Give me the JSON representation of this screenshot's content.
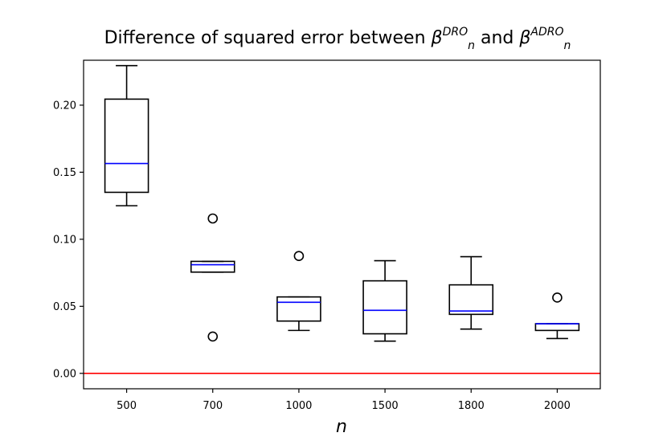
{
  "chart_data": {
    "type": "box",
    "title": "Difference of squared error between β",
    "title_parts": {
      "prefix": "Difference of squared error between ",
      "sym1": "β",
      "sub1": "n",
      "sup1": "DRO",
      "mid": " and ",
      "sym2": "β",
      "sub2": "n",
      "sup2": "ADRO"
    },
    "xlabel": "n",
    "ylabel": "",
    "ylim": [
      -0.0115,
      0.2335
    ],
    "yticks": [
      "0.00",
      "0.05",
      "0.10",
      "0.15",
      "0.20"
    ],
    "categories": [
      "500",
      "700",
      "1000",
      "1500",
      "1800",
      "2000"
    ],
    "boxes": [
      {
        "whisker_low": 0.125,
        "q1": 0.135,
        "median": 0.1565,
        "q3": 0.2045,
        "whisker_high": 0.2295,
        "outliers": []
      },
      {
        "whisker_low": 0.0755,
        "q1": 0.0755,
        "median": 0.081,
        "q3": 0.0835,
        "whisker_high": 0.0835,
        "outliers": [
          0.1155,
          0.0275
        ]
      },
      {
        "whisker_low": 0.032,
        "q1": 0.039,
        "median": 0.053,
        "q3": 0.057,
        "whisker_high": 0.057,
        "outliers": [
          0.0875
        ]
      },
      {
        "whisker_low": 0.024,
        "q1": 0.0295,
        "median": 0.047,
        "q3": 0.069,
        "whisker_high": 0.084,
        "outliers": []
      },
      {
        "whisker_low": 0.033,
        "q1": 0.044,
        "median": 0.0465,
        "q3": 0.066,
        "whisker_high": 0.087,
        "outliers": []
      },
      {
        "whisker_low": 0.026,
        "q1": 0.032,
        "median": 0.037,
        "q3": 0.037,
        "whisker_high": 0.037,
        "outliers": [
          0.0565
        ]
      }
    ],
    "reference_line": {
      "y": 0.0
    },
    "colors": {
      "box": "#000000",
      "median": "#0000ff",
      "reference": "#ff0000",
      "outlier": "#000000"
    },
    "grid": false,
    "legend": "none"
  }
}
